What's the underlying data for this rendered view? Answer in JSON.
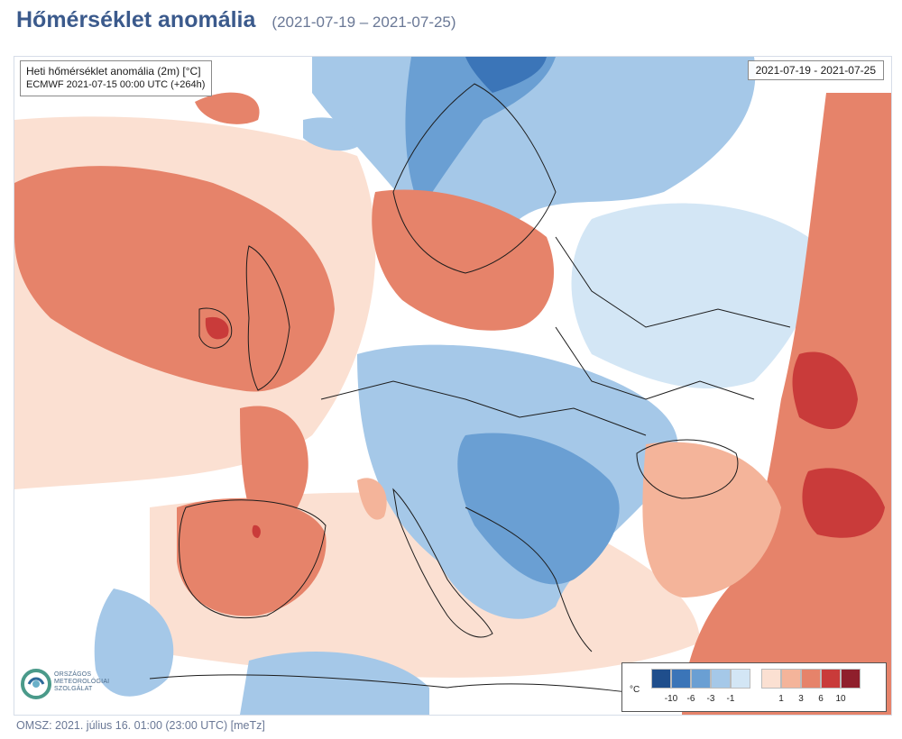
{
  "page": {
    "title": "Hőmérséklet anomália",
    "date_range": "(2021-07-19 – 2021-07-25)",
    "footer": "OMSZ: 2021. július 16. 01:00 (23:00  UTC)  [meTz]"
  },
  "map": {
    "info_line1": "Heti hőmérséklet anomália (2m) [°C]",
    "info_line2": "ECMWF 2021-07-15 00:00 UTC (+264h)",
    "date_box": "2021-07-19 - 2021-07-25"
  },
  "logo": {
    "line1": "ORSZÁGOS",
    "line2": "METEOROLÓGIAI",
    "line3": "SZOLGÁLAT"
  },
  "legend": {
    "unit": "°C",
    "cold_colors": [
      "#1f4e8c",
      "#3b75b8",
      "#6a9fd3",
      "#a5c8e8",
      "#d3e6f5"
    ],
    "warm_colors": [
      "#fbe0d2",
      "#f4b49a",
      "#e6836a",
      "#c93b3a",
      "#8f1f2c"
    ],
    "cold_ticks": [
      "-10",
      "-6",
      "-3",
      "-1"
    ],
    "warm_ticks": [
      "1",
      "3",
      "6",
      "10"
    ]
  }
}
